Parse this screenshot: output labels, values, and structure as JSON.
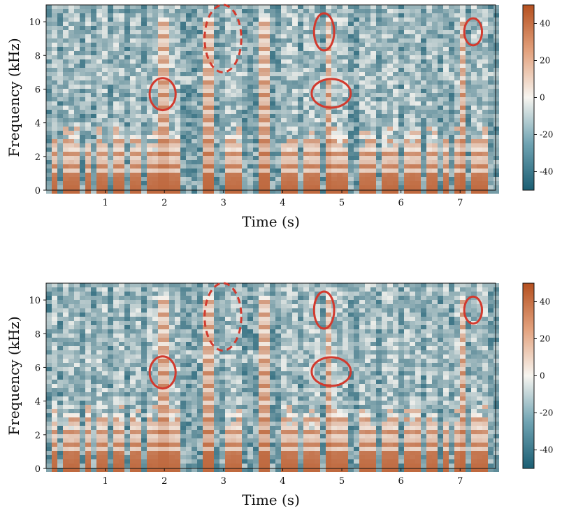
{
  "chart_data": [
    {
      "type": "heatmap",
      "xlabel": "Time (s)",
      "ylabel": "Frequency (kHz)",
      "xlim": [
        0,
        7.6
      ],
      "ylim": [
        0,
        11
      ],
      "xticks": [
        1,
        2,
        3,
        4,
        5,
        6,
        7
      ],
      "yticks": [
        0,
        2,
        4,
        6,
        8,
        10
      ],
      "colorbar": {
        "range": [
          -50,
          50
        ],
        "ticks": [
          40,
          20,
          0,
          -20,
          -40
        ]
      },
      "colors": {
        "low": "#1b5e73",
        "mid": "#f7f5f0",
        "high": "#b5501f"
      },
      "annotations": [
        {
          "shape": "ellipse",
          "style": "solid",
          "time": 1.97,
          "freq": 5.7,
          "rt": 0.22,
          "rf": 0.95
        },
        {
          "shape": "ellipse",
          "style": "dashed",
          "time": 2.99,
          "freq": 9.0,
          "rt": 0.31,
          "rf": 2.0
        },
        {
          "shape": "ellipse",
          "style": "solid",
          "time": 4.7,
          "freq": 9.4,
          "rt": 0.17,
          "rf": 1.1
        },
        {
          "shape": "ellipse",
          "style": "solid",
          "time": 4.82,
          "freq": 5.75,
          "rt": 0.33,
          "rf": 0.85
        },
        {
          "shape": "ellipse",
          "style": "solid",
          "time": 7.22,
          "freq": 9.4,
          "rt": 0.15,
          "rf": 0.8
        }
      ]
    },
    {
      "type": "heatmap",
      "xlabel": "Time (s)",
      "ylabel": "Frequency (kHz)",
      "xlim": [
        0,
        7.6
      ],
      "ylim": [
        0,
        11
      ],
      "xticks": [
        1,
        2,
        3,
        4,
        5,
        6,
        7
      ],
      "yticks": [
        0,
        2,
        4,
        6,
        8,
        10
      ],
      "colorbar": {
        "range": [
          -50,
          50
        ],
        "ticks": [
          40,
          20,
          0,
          -20,
          -40
        ]
      },
      "colors": {
        "low": "#1b5e73",
        "mid": "#f7f5f0",
        "high": "#b5501f"
      },
      "annotations": [
        {
          "shape": "ellipse",
          "style": "solid",
          "time": 1.97,
          "freq": 5.7,
          "rt": 0.22,
          "rf": 0.95
        },
        {
          "shape": "ellipse",
          "style": "dashed",
          "time": 2.99,
          "freq": 9.0,
          "rt": 0.31,
          "rf": 2.0
        },
        {
          "shape": "ellipse",
          "style": "solid",
          "time": 4.7,
          "freq": 9.4,
          "rt": 0.17,
          "rf": 1.1
        },
        {
          "shape": "ellipse",
          "style": "solid",
          "time": 4.82,
          "freq": 5.75,
          "rt": 0.33,
          "rf": 0.85
        },
        {
          "shape": "ellipse",
          "style": "solid",
          "time": 7.22,
          "freq": 9.4,
          "rt": 0.15,
          "rf": 0.8
        }
      ],
      "note": ""
    }
  ]
}
